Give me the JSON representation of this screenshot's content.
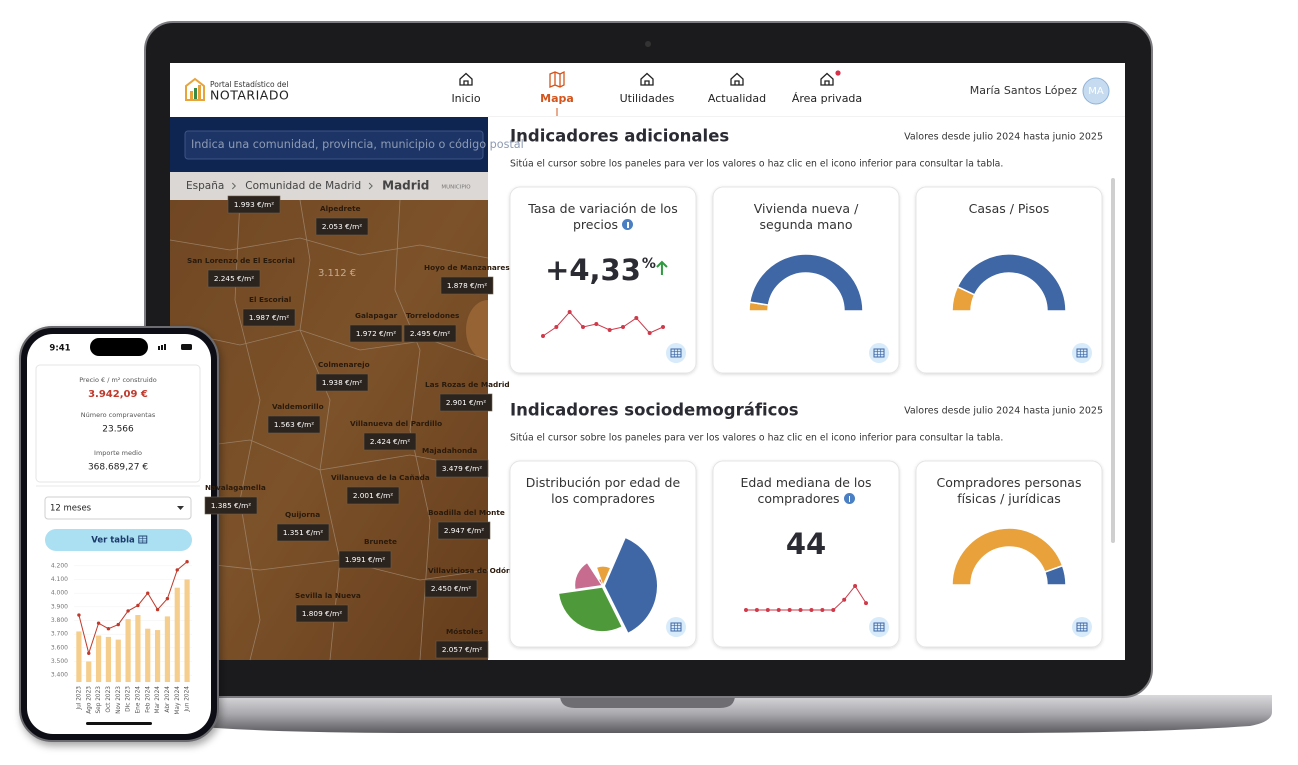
{
  "header": {
    "logo_small": "Portal Estadístico del",
    "logo_big": "NOTARIADO",
    "nav": [
      "Inicio",
      "Mapa",
      "Utilidades",
      "Actualidad",
      "Área privada"
    ],
    "active_nav": 1,
    "notification_nav": 4,
    "user": "María Santos López",
    "avatar": "MA"
  },
  "search_placeholder": "Indica una comunidad, provincia, municipio o código postal",
  "breadcrumb": {
    "items": [
      "España",
      "Comunidad de Madrid",
      "Madrid"
    ],
    "level": "MUNICIPIO"
  },
  "map": {
    "center_label": "3.112 €",
    "labels": [
      {
        "price": "1.993 €/m²"
      },
      {
        "name": "Alpedrete",
        "price": "2.053 €/m²"
      },
      {
        "name": "San Lorenzo de El Escorial",
        "price": "2.245 €/m²"
      },
      {
        "name": "Hoyo de Manzanares",
        "price": "1.878 €/m²"
      },
      {
        "name": "El Escorial",
        "price": "1.987 €/m²"
      },
      {
        "name": "Galapagar",
        "price": "1.972 €/m²"
      },
      {
        "name": "Torrelodones",
        "price": "2.495 €/m²"
      },
      {
        "name": "Colmenarejo",
        "price": "1.938 €/m²"
      },
      {
        "name": "Las Rozas de Madrid",
        "price": "2.901 €/m²"
      },
      {
        "name": "Valdemorillo",
        "price": "1.563 €/m²"
      },
      {
        "name": "Villanueva del Pardillo",
        "price": "2.424 €/m²"
      },
      {
        "name": "Majadahonda",
        "price": "3.479 €/m²"
      },
      {
        "name": "Villanueva de la Cañada",
        "price": "2.001 €/m²"
      },
      {
        "name": "Navalagamella",
        "price": "1.385 €/m²"
      },
      {
        "name": "Quijorna",
        "price": "1.351 €/m²"
      },
      {
        "name": "Boadilla del Monte",
        "price": "2.947 €/m²"
      },
      {
        "name": "Brunete",
        "price": "1.991 €/m²"
      },
      {
        "name": "Villaviciosa de Odón",
        "price": "2.450 €/m²"
      },
      {
        "name": "Sevilla la Nueva",
        "price": "1.809 €/m²"
      },
      {
        "name": "Móstoles",
        "price": "2.057 €/m²"
      }
    ]
  },
  "sections": [
    {
      "title": "Indicadores adicionales",
      "range": "Valores desde julio 2024 hasta junio 2025",
      "hint": "Sitúa el cursor sobre los paneles para ver los valores o haz clic en el icono inferior para consultar la tabla.",
      "cards": [
        {
          "type": "kpi",
          "title": "Tasa de variación de los precios",
          "info": true,
          "value": "+4,33",
          "unit": "%",
          "trend": "up",
          "spark": [
            2,
            5,
            10,
            5,
            6,
            4,
            5,
            8,
            3,
            5
          ],
          "spark_color": "#cf3a4a"
        },
        {
          "type": "half_donut",
          "title": "Vivienda nueva / segunda mano",
          "values": [
            5,
            95
          ],
          "colors": [
            "#e9a23b",
            "#3f67a6"
          ]
        },
        {
          "type": "half_donut",
          "title": "Casas / Pisos",
          "values": [
            14,
            86
          ],
          "colors": [
            "#e9a23b",
            "#3f67a6"
          ]
        }
      ]
    },
    {
      "title": "Indicadores sociodemográficos",
      "range": "Valores desde julio 2024 hasta junio 2025",
      "hint": "Sitúa el cursor sobre los paneles para ver los valores o haz clic en el icono inferior para consultar la tabla.",
      "cards": [
        {
          "type": "rose",
          "title": "Distribución por edad de los compradores",
          "values": [
            10,
            30,
            25,
            15,
            3
          ],
          "colors": [
            "#e9a23b",
            "#3f67a6",
            "#4e9a3a",
            "#c76b8f",
            "#d9534f"
          ]
        },
        {
          "type": "kpi",
          "title": "Edad mediana de los compradores",
          "info": true,
          "value": "44",
          "spark": [
            0,
            0,
            0,
            0,
            0,
            0,
            0,
            0,
            0,
            3,
            7,
            2
          ],
          "spark_color": "#cf3a4a"
        },
        {
          "type": "half_donut",
          "title": "Compradores personas físicas / jurídicas",
          "values": [
            89,
            11
          ],
          "colors": [
            "#e9a23b",
            "#3f67a6"
          ]
        }
      ]
    }
  ],
  "phone": {
    "time": "9:41",
    "stats": [
      {
        "label": "Precio € / m² construido",
        "value": "3.942,09 €",
        "highlight": true
      },
      {
        "label": "Número compraventas",
        "value": "23.566"
      },
      {
        "label": "Importe medio",
        "value": "368.689,27 €"
      }
    ],
    "select": "12 meses",
    "button": "Ver tabla",
    "chart": {
      "type": "bar_line",
      "categories": [
        "Jul 2023",
        "Ago 2023",
        "Sep 2023",
        "Oct 2023",
        "Nov 2023",
        "Dic 2023",
        "Ene 2024",
        "Feb 2024",
        "Mar 2024",
        "Abr 2024",
        "May 2024",
        "Jun 2024"
      ],
      "bar_values": [
        3720,
        3500,
        3690,
        3680,
        3660,
        3810,
        3840,
        3740,
        3730,
        3830,
        4040,
        4100
      ],
      "bar_color": "#f5cd8d",
      "line_values": [
        3840,
        3560,
        3780,
        3740,
        3770,
        3870,
        3910,
        4000,
        3880,
        3960,
        4170,
        4230
      ],
      "line_color": "#c0392b",
      "ylim": [
        3350,
        4250
      ],
      "yticks": [
        {
          "value": 3400,
          "label": "3.400"
        },
        {
          "value": 3500,
          "label": "3.500"
        },
        {
          "value": 3600,
          "label": "3.600"
        },
        {
          "value": 3700,
          "label": "3.700"
        },
        {
          "value": 3800,
          "label": "3.800"
        },
        {
          "value": 3900,
          "label": "3.900"
        },
        {
          "value": 4000,
          "label": "4.000"
        },
        {
          "value": 4100,
          "label": "4.100"
        },
        {
          "value": 4200,
          "label": "4.200"
        }
      ]
    }
  }
}
